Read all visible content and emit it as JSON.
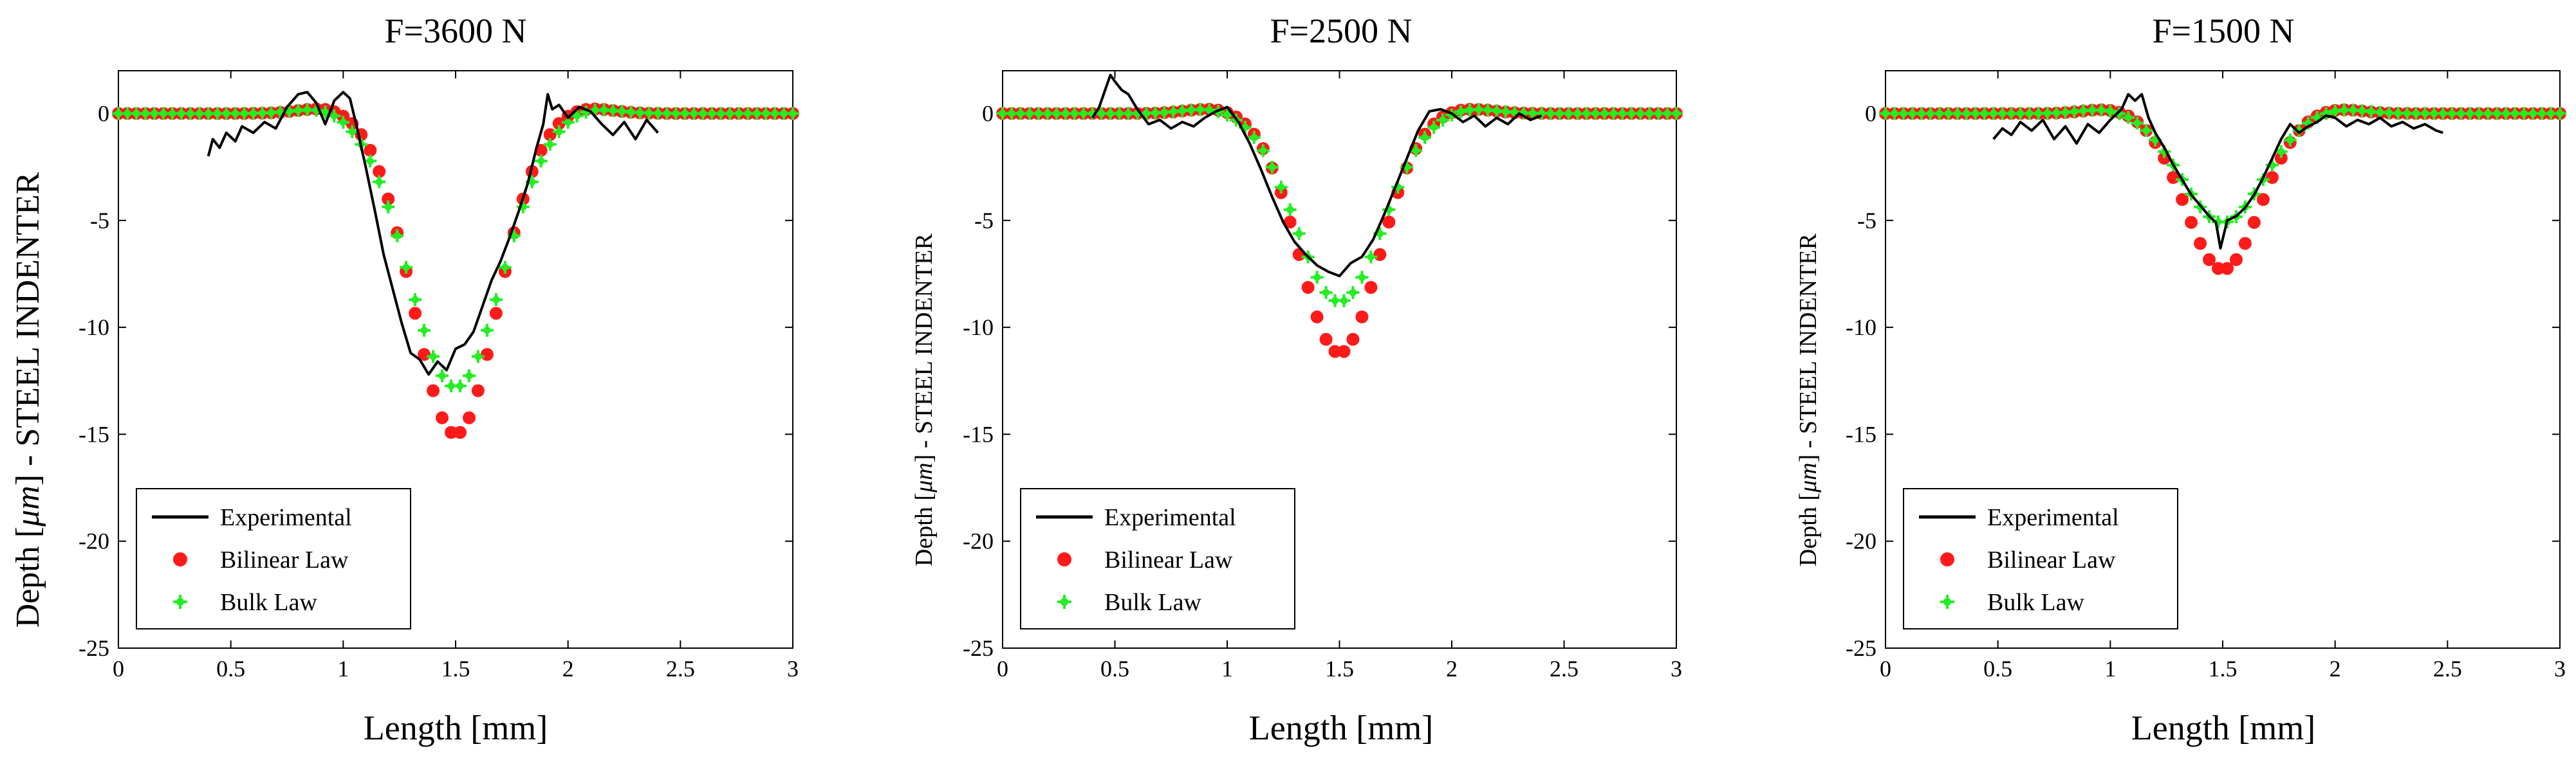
{
  "chart_data": [
    {
      "type": "line",
      "title": "F=3600 N",
      "xlabel": "Length [mm]",
      "ylabel_text": "Depth [",
      "ylabel_unit": "μm",
      "ylabel_suffix": "] - STEEL INDENTER",
      "xlim": [
        0,
        3
      ],
      "ylim": [
        -25,
        2
      ],
      "xticks": [
        0,
        0.5,
        1,
        1.5,
        2,
        2.5,
        3
      ],
      "xtick_labels": [
        "0",
        "0.5",
        "1",
        "1.5",
        "2",
        "2.5",
        "3"
      ],
      "yticks": [
        0,
        -5,
        -10,
        -15,
        -20,
        -25
      ],
      "ytick_labels": [
        "0",
        "-5",
        "-10",
        "-15",
        "-20",
        "-25"
      ],
      "legend_position": "bottom-left",
      "series": [
        {
          "name": "Experimental",
          "style": "line",
          "color": "#000000",
          "x": [
            0.4,
            0.42,
            0.45,
            0.48,
            0.52,
            0.55,
            0.6,
            0.65,
            0.7,
            0.75,
            0.8,
            0.84,
            0.88,
            0.92,
            0.96,
            1.0,
            1.03,
            1.06,
            1.1,
            1.14,
            1.18,
            1.22,
            1.26,
            1.3,
            1.34,
            1.38,
            1.42,
            1.46,
            1.5,
            1.54,
            1.58,
            1.62,
            1.66,
            1.7,
            1.74,
            1.78,
            1.82,
            1.86,
            1.89,
            1.91,
            1.93,
            1.96,
            2.0,
            2.05,
            2.1,
            2.15,
            2.2,
            2.25,
            2.3,
            2.35,
            2.4
          ],
          "y": [
            -2.0,
            -1.2,
            -1.6,
            -0.9,
            -1.3,
            -0.6,
            -0.9,
            -0.4,
            -0.7,
            0.3,
            0.9,
            1.0,
            0.5,
            -0.5,
            0.6,
            1.0,
            0.7,
            -0.6,
            -2.5,
            -4.5,
            -6.6,
            -8.2,
            -9.8,
            -11.2,
            -11.5,
            -12.2,
            -11.6,
            -12.0,
            -11.0,
            -10.8,
            -10.2,
            -9.0,
            -7.8,
            -6.9,
            -5.8,
            -4.6,
            -3.3,
            -1.6,
            -0.5,
            0.9,
            0.2,
            0.4,
            -0.2,
            0.3,
            0.1,
            -0.5,
            -1.0,
            -0.4,
            -1.2,
            -0.3,
            -0.9
          ]
        },
        {
          "name": "Bilinear Law",
          "style": "dots",
          "color": "#ff1a1a",
          "gaussian": {
            "A": 15.0,
            "mu": 1.5,
            "sigma": 0.185,
            "bump": 0.3,
            "bump_sigma": 0.12,
            "offset": 0.56
          }
        },
        {
          "name": "Bulk Law",
          "style": "stars",
          "color": "#22ee22",
          "gaussian": {
            "A": 12.8,
            "mu": 1.5,
            "sigma": 0.205,
            "bump": 0.3,
            "bump_sigma": 0.12,
            "offset": 0.58
          }
        }
      ]
    },
    {
      "type": "line",
      "title": "F=2500 N",
      "xlabel": "Length [mm]",
      "ylabel_text": "Depth [",
      "ylabel_unit": "μm",
      "ylabel_suffix": "] - STEEL INDENTER",
      "xlim": [
        0,
        3
      ],
      "ylim": [
        -25,
        2
      ],
      "xticks": [
        0,
        0.5,
        1,
        1.5,
        2,
        2.5,
        3
      ],
      "xtick_labels": [
        "0",
        "0.5",
        "1",
        "1.5",
        "2",
        "2.5",
        "3"
      ],
      "yticks": [
        0,
        -5,
        -10,
        -15,
        -20,
        -25
      ],
      "ytick_labels": [
        "0",
        "-5",
        "-10",
        "-15",
        "-20",
        "-25"
      ],
      "legend_position": "bottom-left",
      "series": [
        {
          "name": "Experimental",
          "style": "line",
          "color": "#000000",
          "x": [
            0.4,
            0.43,
            0.46,
            0.48,
            0.5,
            0.53,
            0.56,
            0.6,
            0.65,
            0.7,
            0.75,
            0.8,
            0.85,
            0.9,
            0.95,
            1.0,
            1.05,
            1.1,
            1.15,
            1.2,
            1.25,
            1.3,
            1.35,
            1.4,
            1.45,
            1.5,
            1.55,
            1.6,
            1.65,
            1.7,
            1.75,
            1.8,
            1.85,
            1.9,
            1.95,
            2.0,
            2.05,
            2.1,
            2.15,
            2.2,
            2.25,
            2.3,
            2.35,
            2.4
          ],
          "y": [
            -0.2,
            0.3,
            1.2,
            1.8,
            1.5,
            1.1,
            0.9,
            0.2,
            -0.5,
            -0.3,
            -0.7,
            -0.4,
            -0.6,
            -0.2,
            0.1,
            0.3,
            -0.4,
            -1.4,
            -2.6,
            -3.9,
            -5.1,
            -6.0,
            -6.6,
            -7.1,
            -7.4,
            -7.6,
            -7.0,
            -6.7,
            -5.9,
            -4.7,
            -3.4,
            -2.1,
            -0.8,
            0.1,
            0.2,
            0.0,
            -0.4,
            -0.1,
            -0.6,
            -0.2,
            -0.5,
            0.0,
            -0.3,
            -0.1
          ]
        },
        {
          "name": "Bilinear Law",
          "style": "dots",
          "color": "#ff1a1a",
          "gaussian": {
            "A": 11.2,
            "mu": 1.5,
            "sigma": 0.175,
            "bump": 0.25,
            "bump_sigma": 0.12,
            "offset": 0.55
          }
        },
        {
          "name": "Bulk Law",
          "style": "stars",
          "color": "#22ee22",
          "gaussian": {
            "A": 8.8,
            "mu": 1.5,
            "sigma": 0.19,
            "bump": 0.25,
            "bump_sigma": 0.12,
            "offset": 0.57
          }
        }
      ]
    },
    {
      "type": "line",
      "title": "F=1500 N",
      "xlabel": "Length [mm]",
      "ylabel_text": "Depth [",
      "ylabel_unit": "μm",
      "ylabel_suffix": "] - STEEL INDENTER",
      "xlim": [
        0,
        3
      ],
      "ylim": [
        -25,
        2
      ],
      "xticks": [
        0,
        0.5,
        1,
        1.5,
        2,
        2.5,
        3
      ],
      "xtick_labels": [
        "0",
        "0.5",
        "1",
        "1.5",
        "2",
        "2.5",
        "3"
      ],
      "yticks": [
        0,
        -5,
        -10,
        -15,
        -20,
        -25
      ],
      "ytick_labels": [
        "0",
        "-5",
        "-10",
        "-15",
        "-20",
        "-25"
      ],
      "legend_position": "bottom-left",
      "series": [
        {
          "name": "Experimental",
          "style": "line",
          "color": "#000000",
          "x": [
            0.48,
            0.52,
            0.56,
            0.6,
            0.65,
            0.7,
            0.75,
            0.8,
            0.85,
            0.9,
            0.95,
            1.0,
            1.05,
            1.08,
            1.11,
            1.14,
            1.17,
            1.2,
            1.24,
            1.28,
            1.32,
            1.36,
            1.4,
            1.44,
            1.47,
            1.49,
            1.52,
            1.56,
            1.6,
            1.64,
            1.68,
            1.72,
            1.76,
            1.8,
            1.84,
            1.88,
            1.92,
            1.96,
            2.0,
            2.05,
            2.1,
            2.15,
            2.2,
            2.25,
            2.3,
            2.35,
            2.4,
            2.45,
            2.48
          ],
          "y": [
            -1.2,
            -0.7,
            -1.0,
            -0.4,
            -0.8,
            -0.3,
            -1.2,
            -0.6,
            -1.4,
            -0.5,
            -0.9,
            -0.3,
            0.2,
            0.9,
            0.6,
            0.9,
            -0.2,
            -0.9,
            -1.6,
            -2.4,
            -3.1,
            -3.8,
            -4.3,
            -4.8,
            -5.1,
            -6.3,
            -5.0,
            -4.8,
            -4.4,
            -3.8,
            -3.0,
            -2.1,
            -1.2,
            -0.5,
            -0.9,
            -0.6,
            -0.4,
            -0.1,
            -0.2,
            -0.6,
            -0.3,
            -0.5,
            -0.2,
            -0.6,
            -0.4,
            -0.7,
            -0.5,
            -0.8,
            -0.9
          ]
        },
        {
          "name": "Bilinear Law",
          "style": "dots",
          "color": "#ff1a1a",
          "gaussian": {
            "A": 7.3,
            "mu": 1.5,
            "sigma": 0.165,
            "bump": 0.22,
            "bump_sigma": 0.11,
            "offset": 0.5
          }
        },
        {
          "name": "Bulk Law",
          "style": "stars",
          "color": "#22ee22",
          "gaussian": {
            "A": 5.1,
            "mu": 1.5,
            "sigma": 0.18,
            "bump": 0.22,
            "bump_sigma": 0.11,
            "offset": 0.52
          }
        }
      ]
    }
  ]
}
